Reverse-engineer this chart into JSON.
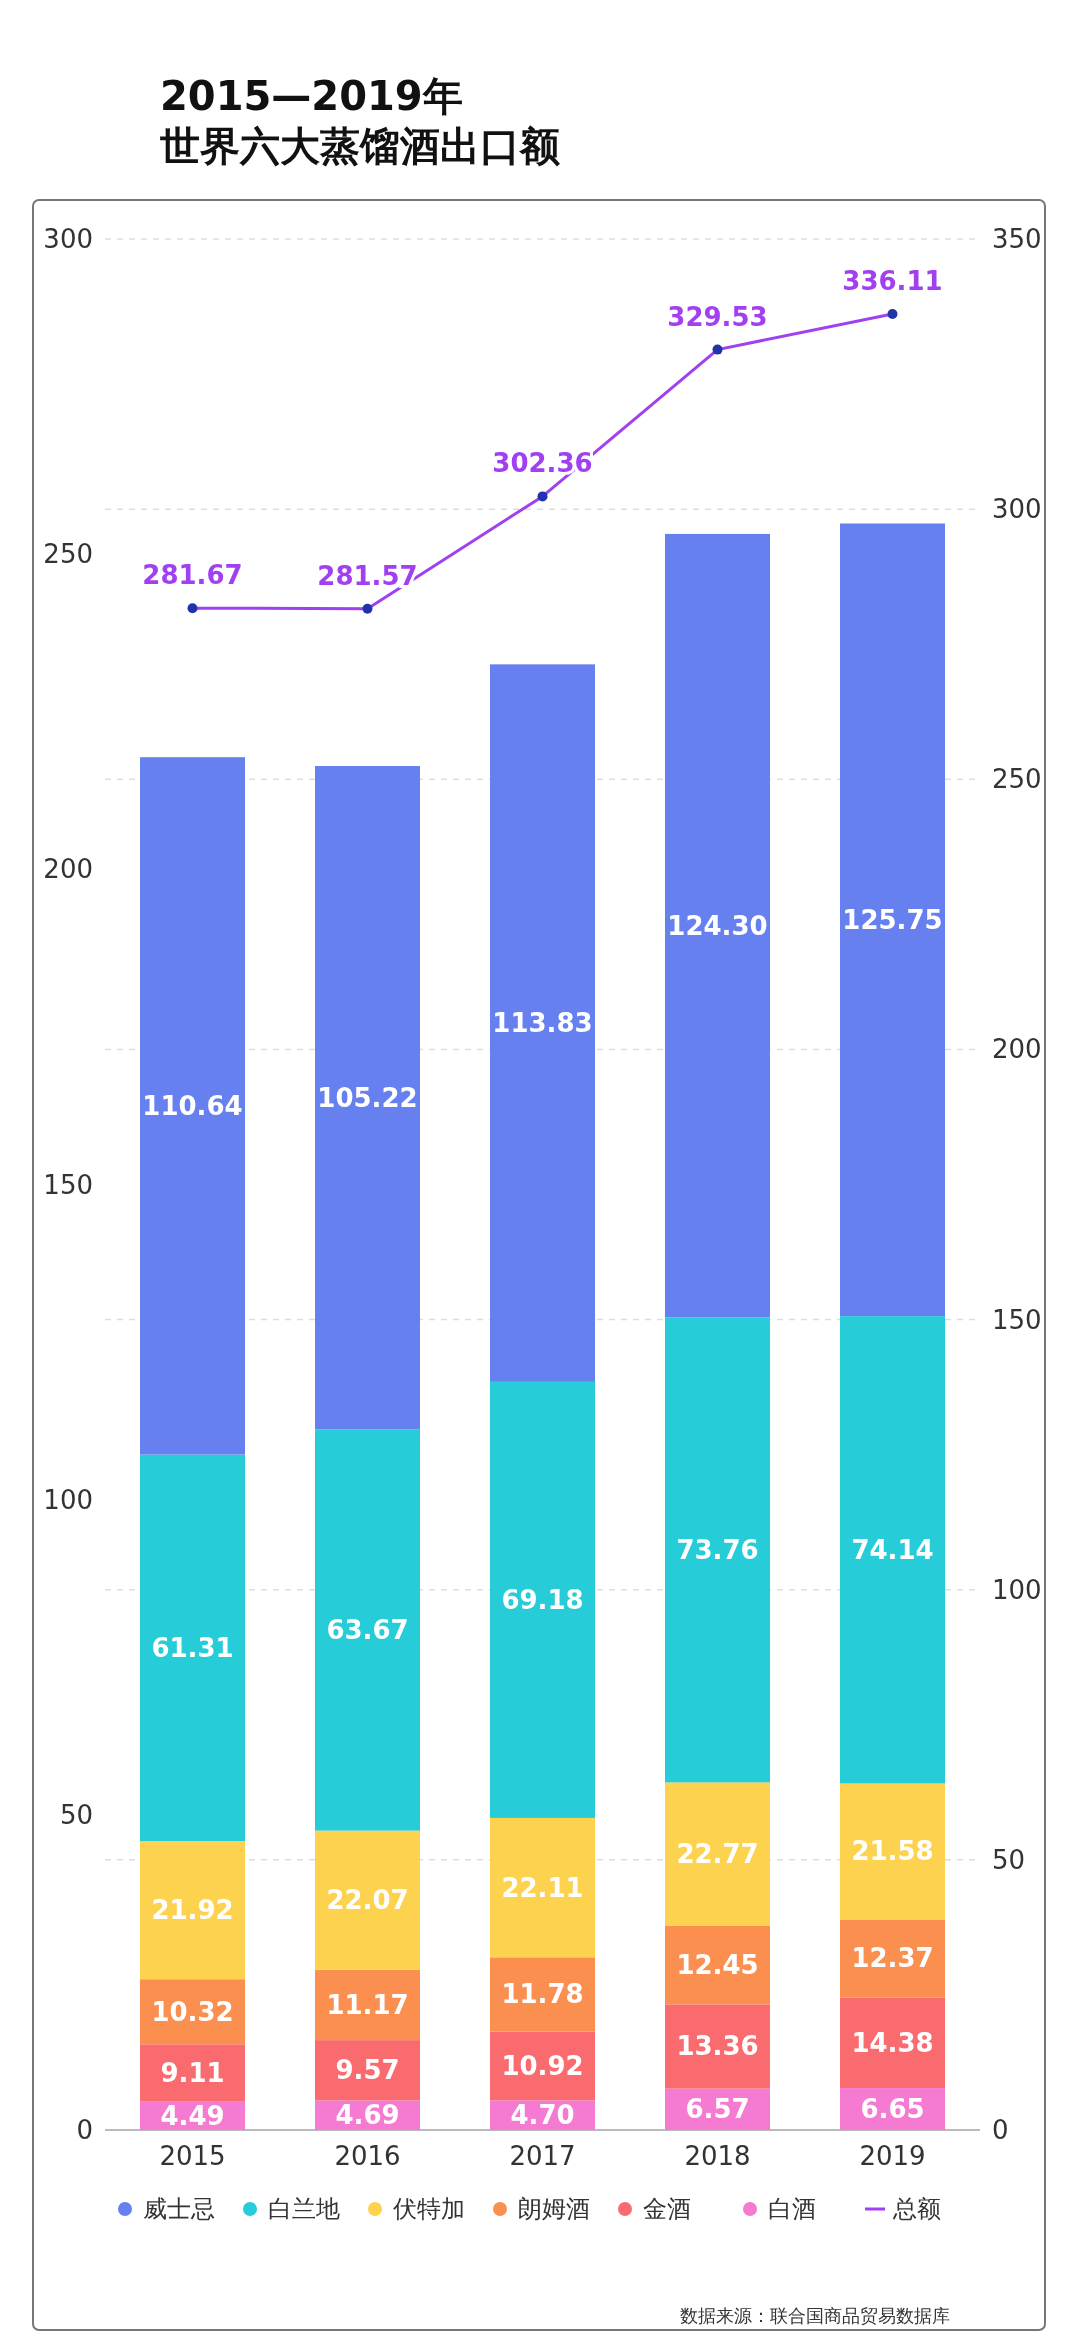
{
  "chart_data": {
    "type": "bar",
    "title": "2015—2019年",
    "subtitle": "世界六大蒸馏酒出口额",
    "categories": [
      "2015",
      "2016",
      "2017",
      "2018",
      "2019"
    ],
    "stacked": true,
    "ylim": [
      0,
      300
    ],
    "yticks": [
      0,
      50,
      100,
      150,
      200,
      250,
      300
    ],
    "y2lim": [
      0,
      350
    ],
    "y2ticks": [
      0,
      50,
      100,
      150,
      200,
      250,
      300,
      350
    ],
    "grid": "y2",
    "legend": "bottom",
    "marker": "circle",
    "series": [
      {
        "name": "白酒",
        "color": "#f47ad2",
        "values": [
          4.49,
          4.69,
          4.7,
          6.57,
          6.65
        ],
        "value_labels": [
          "4.49",
          "4.69",
          "4.70",
          "6.57",
          "6.65"
        ]
      },
      {
        "name": "金酒",
        "color": "#f96b6f",
        "values": [
          9.11,
          9.57,
          10.92,
          13.36,
          14.38
        ],
        "value_labels": [
          "9.11",
          "9.57",
          "10.92",
          "13.36",
          "14.38"
        ]
      },
      {
        "name": "朗姆酒",
        "color": "#fb8f4f",
        "values": [
          10.32,
          11.17,
          11.78,
          12.45,
          12.37
        ],
        "value_labels": [
          "10.32",
          "11.17",
          "11.78",
          "12.45",
          "12.37"
        ]
      },
      {
        "name": "伏特加",
        "color": "#fdd24e",
        "values": [
          21.92,
          22.07,
          22.11,
          22.77,
          21.58
        ],
        "value_labels": [
          "21.92",
          "22.07",
          "22.11",
          "22.77",
          "21.58"
        ]
      },
      {
        "name": "白兰地",
        "color": "#26ccd8",
        "values": [
          61.31,
          63.67,
          69.18,
          73.76,
          74.14
        ],
        "value_labels": [
          "61.31",
          "63.67",
          "69.18",
          "73.76",
          "74.14"
        ]
      },
      {
        "name": "威士忌",
        "color": "#6680f0",
        "values": [
          110.64,
          105.22,
          113.83,
          124.3,
          125.75
        ],
        "value_labels": [
          "110.64",
          "105.22",
          "113.83",
          "124.30",
          "125.75"
        ]
      },
      {
        "name": "总额",
        "type": "line",
        "axis": "y2",
        "color": "#a040f0",
        "values": [
          281.67,
          281.57,
          302.36,
          329.53,
          336.11
        ],
        "value_labels": [
          "281.67",
          "281.57",
          "302.36",
          "329.53",
          "336.11"
        ]
      }
    ],
    "annotations": [
      "数据来源：联合国商品贸易数据库"
    ]
  }
}
